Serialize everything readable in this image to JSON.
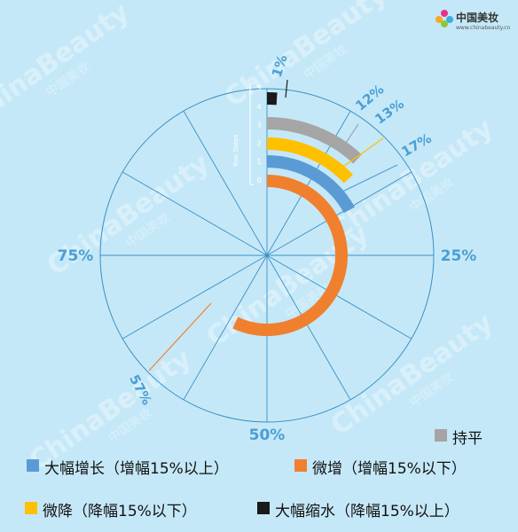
{
  "brand": {
    "name": "中国美妆",
    "url": "www.chinabeauty.cn",
    "watermark": "ChinaBeauty",
    "watermark_sub": "中国美妆"
  },
  "colors": {
    "background": "#c5e8f8",
    "grid": "#3b8fc3",
    "dial_text": "#4a9fd4"
  },
  "chart_data": {
    "type": "radial-bar",
    "scale_labels": [
      "25%",
      "50%",
      "75%"
    ],
    "track_axis_label": "Your Steps",
    "track_numbers": [
      "0",
      "1",
      "2",
      "3",
      "4",
      "5"
    ],
    "series": [
      {
        "name": "微增（增幅15%以下）",
        "value": 57,
        "label": "57%",
        "color": "#f0802e"
      },
      {
        "name": "大幅增长（增幅15%以上）",
        "value": 17,
        "label": "17%",
        "color": "#5b9bd5"
      },
      {
        "name": "微降（降幅15%以下）",
        "value": 13,
        "label": "13%",
        "color": "#ffc000"
      },
      {
        "name": "持平",
        "value": 12,
        "label": "12%",
        "color": "#a5a5a5"
      },
      {
        "name": "大幅缩水（降幅15%以上）",
        "value": 1,
        "label": "1%",
        "color": "#1a1a1a"
      }
    ]
  },
  "legend": [
    {
      "label": "持平",
      "color": "#a5a5a5"
    },
    {
      "label": "大幅增长（增幅15%以上）",
      "color": "#5b9bd5"
    },
    {
      "label": "微增（增幅15%以下）",
      "color": "#f0802e"
    },
    {
      "label": "微降（降幅15%以下）",
      "color": "#ffc000"
    },
    {
      "label": "大幅缩水（降幅15%以上）",
      "color": "#1a1a1a"
    }
  ]
}
